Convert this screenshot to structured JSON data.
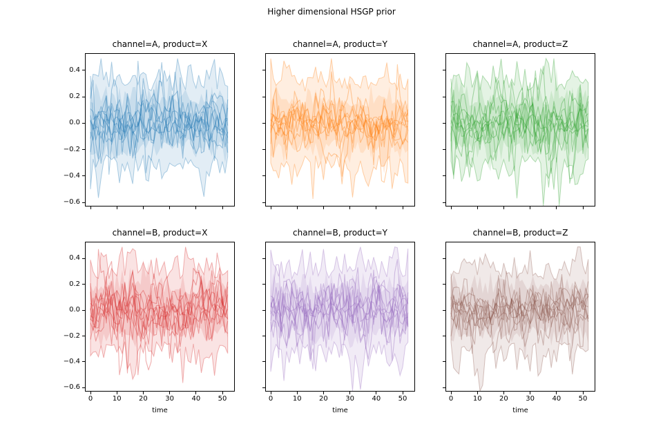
{
  "figure": {
    "title": "Higher dimensional HSGP prior",
    "background": "#ffffff",
    "text_color": "#000000"
  },
  "chart_data": {
    "type": "line",
    "title": "Higher dimensional HSGP prior",
    "description": "2x3 grid of subplots (rows: channel A/B, columns: product X/Y/Z). Each subplot shows ~10 jagged random prior sample lines oscillating around 0 with a translucent jagged envelope band spanning roughly -0.35 to +0.35, with occasional narrow spikes down to about -0.6 and up to about 0.45. Axes are shared: y tick labels only on the first column, x tick labels and the label 'time' only on the bottom row.",
    "xlabel": "time",
    "x": {
      "min": 0,
      "max": 52,
      "step": 1
    },
    "xlim": [
      -2.1,
      54.7
    ],
    "ylim": [
      -0.63,
      0.53
    ],
    "xticks": {
      "values": [
        0,
        10,
        20,
        30,
        40,
        50
      ],
      "labels": [
        "0",
        "10",
        "20",
        "30",
        "40",
        "50"
      ]
    },
    "yticks": {
      "values": [
        0.4,
        0.2,
        0.0,
        -0.2,
        -0.4,
        -0.6
      ],
      "labels": [
        "0.4",
        "0.2",
        "0.0",
        "−0.2",
        "−0.4",
        "−0.6"
      ]
    },
    "grid": false,
    "legend": null,
    "style": {
      "n_draws_per_panel": 10,
      "line_alpha": 0.38,
      "band_fill_alpha": 0.13,
      "band_edge_alpha": 0.35,
      "spine_color": "#000000"
    },
    "subplots": [
      {
        "row": 0,
        "col": 0,
        "title": "channel=A, product=X",
        "color": "#1f77b4",
        "seed": 101
      },
      {
        "row": 0,
        "col": 1,
        "title": "channel=A, product=Y",
        "color": "#ff7f0e",
        "seed": 202
      },
      {
        "row": 0,
        "col": 2,
        "title": "channel=A, product=Z",
        "color": "#2ca02c",
        "seed": 303
      },
      {
        "row": 1,
        "col": 0,
        "title": "channel=B, product=X",
        "color": "#d62728",
        "seed": 404
      },
      {
        "row": 1,
        "col": 1,
        "title": "channel=B, product=Y",
        "color": "#9467bd",
        "seed": 505
      },
      {
        "row": 1,
        "col": 2,
        "title": "channel=B, product=Z",
        "color": "#8c564b",
        "seed": 606
      }
    ]
  }
}
